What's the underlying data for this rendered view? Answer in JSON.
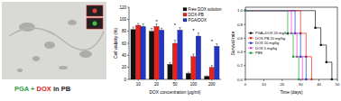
{
  "micrograph": {
    "caption": [
      {
        "text": "PGA",
        "color": "#2e9e3e"
      },
      {
        "text": "+",
        "color": "#2e9e3e"
      },
      {
        "text": "DOX",
        "color": "#e02020"
      },
      {
        "text": "in PB",
        "color": "#222222"
      }
    ]
  },
  "chart_data": [
    {
      "type": "bar",
      "y_label": "Cell viability (%)",
      "x_label": "DOX concentration (μg/ml)",
      "categories": [
        "10",
        "20",
        "50",
        "100",
        "200"
      ],
      "series": [
        {
          "name": "Free DOX solution",
          "color": "#111111",
          "values": [
            83,
            80,
            25,
            10,
            5
          ],
          "errors": [
            4,
            5,
            3,
            2,
            1
          ]
        },
        {
          "name": "DOX-PB",
          "color": "#e8231d",
          "values": [
            90,
            88,
            60,
            38,
            20
          ],
          "errors": [
            3,
            4,
            5,
            4,
            3
          ]
        },
        {
          "name": "PGA/DOX",
          "color": "#2334c8",
          "values": [
            88,
            82,
            82,
            72,
            55
          ],
          "errors": [
            4,
            3,
            4,
            5,
            4
          ]
        }
      ],
      "ylim": [
        0,
        120
      ],
      "yticks": [
        0,
        20,
        40,
        60,
        80,
        100,
        120
      ],
      "legend": "top-right",
      "annotations": [
        {
          "text": "*",
          "category": "20"
        },
        {
          "text": "*",
          "category": "50"
        },
        {
          "text": "*",
          "category": "100"
        },
        {
          "text": "*",
          "category": "200"
        }
      ]
    },
    {
      "type": "line",
      "line_style": "step",
      "marker": "square",
      "y_label": "Survival rate",
      "x_label": "Time (days)",
      "xlim": [
        0,
        50
      ],
      "xticks": [
        0,
        10,
        20,
        30,
        40,
        50
      ],
      "ylim": [
        0,
        1.05
      ],
      "yticks": [
        {
          "value": 0,
          "label": "0.0"
        },
        0.2,
        0.4,
        0.6,
        0.8,
        {
          "value": 1,
          "label": "1.0"
        }
      ],
      "legend": "left",
      "series": [
        {
          "name": "PGA+DOX 20 mg/kg",
          "color": "#111111",
          "x": [
            0,
            38,
            41,
            44,
            47
          ],
          "values": [
            1,
            0.75,
            0.5,
            0.25,
            0
          ]
        },
        {
          "name": "DOX-PB 20 mg/kg",
          "color": "#e8231d",
          "x": [
            0,
            30,
            33,
            36
          ],
          "values": [
            1,
            0.67,
            0.33,
            0
          ]
        },
        {
          "name": "DOX 10 mg/kg",
          "color": "#2334c8",
          "x": [
            0,
            27,
            30,
            33
          ],
          "values": [
            1,
            0.67,
            0.33,
            0
          ]
        },
        {
          "name": "DOX 5 mg/kg",
          "color": "#e040c0",
          "x": [
            0,
            25,
            28,
            31
          ],
          "values": [
            1,
            0.67,
            0.33,
            0
          ]
        },
        {
          "name": "PBS",
          "color": "#20a040",
          "x": [
            0,
            23,
            26,
            29
          ],
          "values": [
            1,
            0.67,
            0.33,
            0
          ]
        }
      ]
    }
  ]
}
